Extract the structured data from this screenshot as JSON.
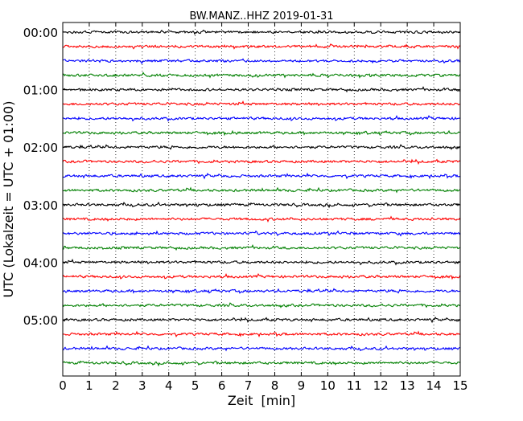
{
  "chart_data": {
    "type": "line",
    "subtype": "seismogram-dayplot",
    "title": "BW.MANZ..HHZ 2019-01-31",
    "xlabel": "Zeit  [min]",
    "ylabel": "UTC (Lokalzeit = UTC + 01:00)",
    "xlim": [
      0,
      15
    ],
    "x_ticks": [
      0,
      1,
      2,
      3,
      4,
      5,
      6,
      7,
      8,
      9,
      10,
      11,
      12,
      13,
      14,
      15
    ],
    "x_tick_labels": [
      "0",
      "1",
      "2",
      "3",
      "4",
      "5",
      "6",
      "7",
      "8",
      "9",
      "10",
      "11",
      "12",
      "13",
      "14",
      "15"
    ],
    "y_tick_labels": [
      "00:00",
      "01:00",
      "02:00",
      "03:00",
      "04:00",
      "05:00"
    ],
    "trace_interval_minutes": 15,
    "trace_count": 24,
    "trace_colors": [
      "#000000",
      "#ff0000",
      "#0000ff",
      "#008000"
    ],
    "vertical_grid": "dotted",
    "legend": "none"
  }
}
